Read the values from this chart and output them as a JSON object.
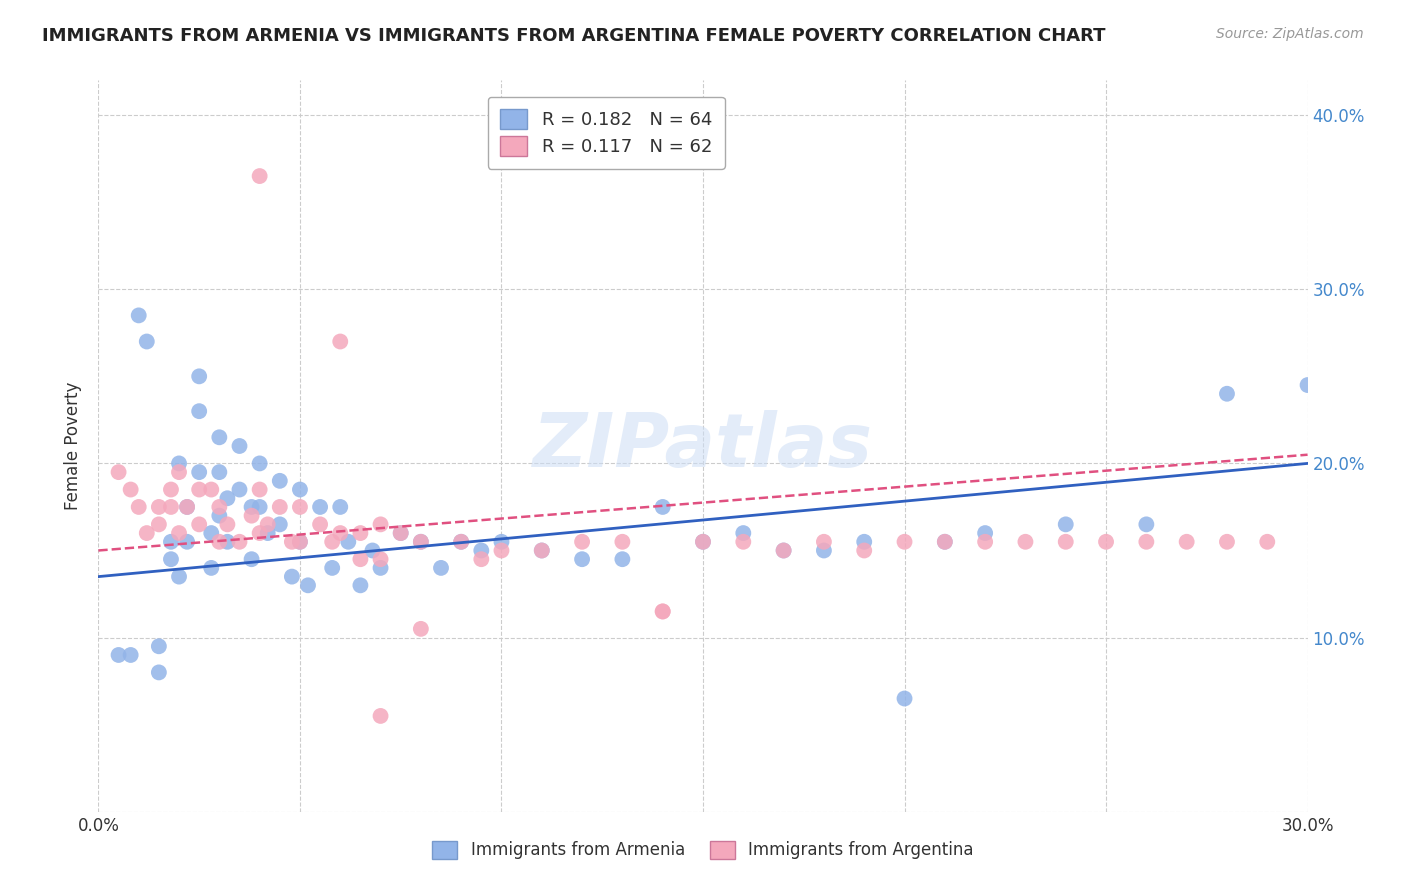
{
  "title": "IMMIGRANTS FROM ARMENIA VS IMMIGRANTS FROM ARGENTINA FEMALE POVERTY CORRELATION CHART",
  "source": "Source: ZipAtlas.com",
  "ylabel": "Female Poverty",
  "xlim": [
    0.0,
    0.3
  ],
  "ylim": [
    0.0,
    0.42
  ],
  "legend_entry1": "R = 0.182   N = 64",
  "legend_entry2": "R = 0.117   N = 62",
  "series1_color": "#92b4e8",
  "series2_color": "#f4a8bc",
  "line1_color": "#3060c0",
  "line2_color": "#e05080",
  "watermark": "ZIPatlas",
  "armenia_x": [
    0.005,
    0.008,
    0.01,
    0.012,
    0.015,
    0.015,
    0.018,
    0.018,
    0.02,
    0.02,
    0.022,
    0.022,
    0.025,
    0.025,
    0.025,
    0.028,
    0.028,
    0.03,
    0.03,
    0.03,
    0.032,
    0.032,
    0.035,
    0.035,
    0.038,
    0.038,
    0.04,
    0.04,
    0.042,
    0.045,
    0.045,
    0.048,
    0.05,
    0.05,
    0.052,
    0.055,
    0.058,
    0.06,
    0.062,
    0.065,
    0.068,
    0.07,
    0.075,
    0.08,
    0.085,
    0.09,
    0.095,
    0.1,
    0.11,
    0.12,
    0.13,
    0.14,
    0.15,
    0.16,
    0.17,
    0.18,
    0.19,
    0.2,
    0.21,
    0.22,
    0.24,
    0.26,
    0.28,
    0.3
  ],
  "armenia_y": [
    0.09,
    0.09,
    0.285,
    0.27,
    0.095,
    0.08,
    0.155,
    0.145,
    0.2,
    0.135,
    0.175,
    0.155,
    0.25,
    0.23,
    0.195,
    0.16,
    0.14,
    0.215,
    0.195,
    0.17,
    0.18,
    0.155,
    0.21,
    0.185,
    0.175,
    0.145,
    0.2,
    0.175,
    0.16,
    0.19,
    0.165,
    0.135,
    0.185,
    0.155,
    0.13,
    0.175,
    0.14,
    0.175,
    0.155,
    0.13,
    0.15,
    0.14,
    0.16,
    0.155,
    0.14,
    0.155,
    0.15,
    0.155,
    0.15,
    0.145,
    0.145,
    0.175,
    0.155,
    0.16,
    0.15,
    0.15,
    0.155,
    0.065,
    0.155,
    0.16,
    0.165,
    0.165,
    0.24,
    0.245
  ],
  "argentina_x": [
    0.005,
    0.008,
    0.01,
    0.012,
    0.015,
    0.015,
    0.018,
    0.018,
    0.02,
    0.02,
    0.022,
    0.025,
    0.025,
    0.028,
    0.03,
    0.03,
    0.032,
    0.035,
    0.038,
    0.04,
    0.04,
    0.042,
    0.045,
    0.048,
    0.05,
    0.05,
    0.055,
    0.058,
    0.06,
    0.065,
    0.065,
    0.07,
    0.07,
    0.075,
    0.08,
    0.09,
    0.095,
    0.1,
    0.11,
    0.12,
    0.13,
    0.14,
    0.15,
    0.16,
    0.17,
    0.18,
    0.19,
    0.2,
    0.21,
    0.22,
    0.23,
    0.24,
    0.25,
    0.26,
    0.27,
    0.28,
    0.29,
    0.04,
    0.06,
    0.07,
    0.08,
    0.14
  ],
  "argentina_y": [
    0.195,
    0.185,
    0.175,
    0.16,
    0.175,
    0.165,
    0.185,
    0.175,
    0.195,
    0.16,
    0.175,
    0.185,
    0.165,
    0.185,
    0.175,
    0.155,
    0.165,
    0.155,
    0.17,
    0.185,
    0.16,
    0.165,
    0.175,
    0.155,
    0.175,
    0.155,
    0.165,
    0.155,
    0.16,
    0.16,
    0.145,
    0.165,
    0.145,
    0.16,
    0.155,
    0.155,
    0.145,
    0.15,
    0.15,
    0.155,
    0.155,
    0.115,
    0.155,
    0.155,
    0.15,
    0.155,
    0.15,
    0.155,
    0.155,
    0.155,
    0.155,
    0.155,
    0.155,
    0.155,
    0.155,
    0.155,
    0.155,
    0.365,
    0.27,
    0.055,
    0.105,
    0.115
  ]
}
